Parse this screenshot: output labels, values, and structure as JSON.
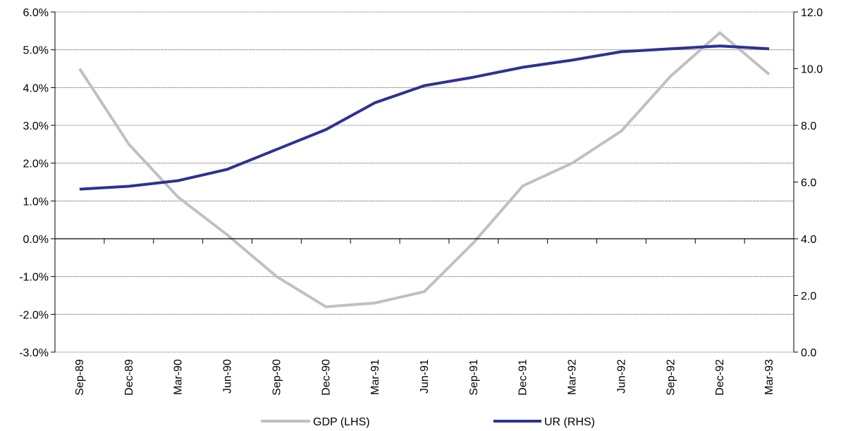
{
  "chart_data": {
    "type": "line",
    "title": "",
    "categories": [
      "Sep-89",
      "Dec-89",
      "Mar-90",
      "Jun-90",
      "Sep-90",
      "Dec-90",
      "Mar-91",
      "Jun-91",
      "Sep-91",
      "Dec-91",
      "Mar-92",
      "Jun-92",
      "Sep-92",
      "Dec-92",
      "Mar-93"
    ],
    "series": [
      {
        "name": "GDP (LHS)",
        "axis": "left",
        "color": "#c0c0c0",
        "values": [
          4.5,
          2.5,
          1.1,
          0.1,
          -1.0,
          -1.8,
          -1.7,
          -1.4,
          -0.1,
          1.4,
          2.0,
          2.85,
          4.3,
          5.45,
          4.35
        ]
      },
      {
        "name": "UR (RHS)",
        "axis": "right",
        "color": "#2e3192",
        "values": [
          5.75,
          5.85,
          6.05,
          6.45,
          7.15,
          7.85,
          8.8,
          9.4,
          9.7,
          10.05,
          10.3,
          10.6,
          10.7,
          10.8,
          10.7
        ]
      }
    ],
    "y_left": {
      "ylim": [
        -3,
        6
      ],
      "ticks": [
        6,
        5,
        4,
        3,
        2,
        1,
        0,
        -1,
        -2,
        -3
      ],
      "tick_labels": [
        "6.0%",
        "5.0%",
        "4.0%",
        "3.0%",
        "2.0%",
        "1.0%",
        "0.0%",
        "-1.0%",
        "-2.0%",
        "-3.0%"
      ]
    },
    "y_right": {
      "ylim": [
        0,
        12
      ],
      "ticks": [
        12,
        10,
        8,
        6,
        4,
        2,
        0
      ],
      "tick_labels": [
        "12.0",
        "10.0",
        "8.0",
        "6.0",
        "4.0",
        "2.0",
        "0.0"
      ]
    },
    "grid": true,
    "legend_position": "bottom"
  }
}
